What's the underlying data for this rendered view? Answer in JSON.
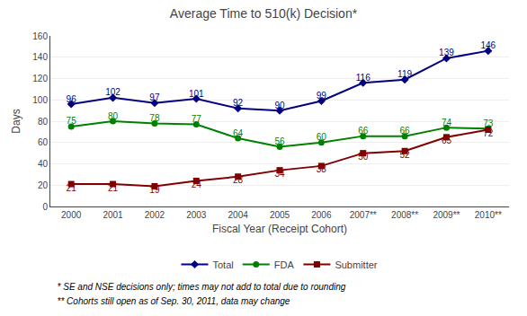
{
  "chart_data": {
    "type": "line",
    "title": "Average Time to 510(k) Decision*",
    "xlabel": "Fiscal Year (Receipt Cohort)",
    "ylabel": "Days",
    "categories": [
      "2000",
      "2001",
      "2002",
      "2003",
      "2004",
      "2005",
      "2006",
      "2007**",
      "2008**",
      "2009**",
      "2010**"
    ],
    "series": [
      {
        "name": "Total",
        "color": "#000080",
        "marker": "diamond",
        "values": [
          96,
          102,
          97,
          101,
          92,
          90,
          99,
          116,
          119,
          139,
          146
        ]
      },
      {
        "name": "FDA",
        "color": "#008000",
        "marker": "circle",
        "values": [
          75,
          80,
          78,
          77,
          64,
          56,
          60,
          66,
          66,
          74,
          73
        ]
      },
      {
        "name": "Submitter",
        "color": "#800000",
        "marker": "square",
        "values": [
          21,
          21,
          19,
          24,
          28,
          34,
          38,
          50,
          52,
          65,
          72
        ]
      }
    ],
    "ylim": [
      0,
      160
    ],
    "yticks": [
      0,
      20,
      40,
      60,
      80,
      100,
      120,
      140,
      160
    ],
    "grid": true,
    "legend": "lower center",
    "data_labels": true,
    "annotations": [
      "  * SE and NSE decisions only; times may not add to total due to rounding",
      "  ** Cohorts still open as of Sep. 30, 2011, data may change"
    ]
  }
}
